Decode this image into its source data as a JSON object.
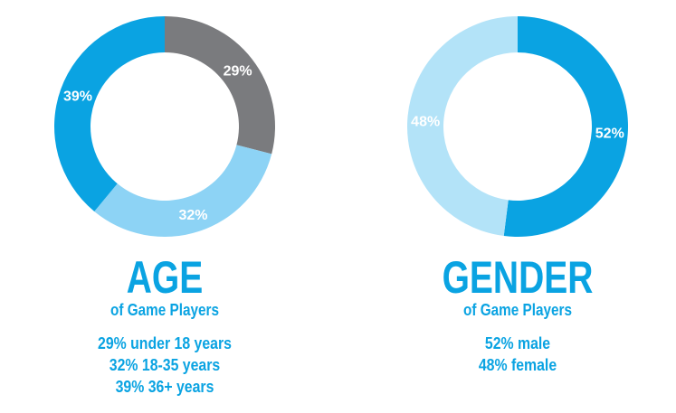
{
  "chart_data": [
    {
      "type": "pie",
      "variant": "donut",
      "title": "AGE",
      "subtitle": "of Game Players",
      "categories": [
        "under 18 years",
        "18-35 years",
        "36+ years"
      ],
      "values": [
        29,
        32,
        39
      ],
      "slice_labels": [
        "29%",
        "32%",
        "39%"
      ],
      "colors": [
        "#7a7b7e",
        "#8dd3f5",
        "#0aa3e2"
      ],
      "stats": [
        "29% under 18 years",
        "32% 18-35 years",
        "39% 36+ years"
      ]
    },
    {
      "type": "pie",
      "variant": "donut",
      "title": "GENDER",
      "subtitle": "of Game Players",
      "categories": [
        "male",
        "female"
      ],
      "values": [
        52,
        48
      ],
      "slice_labels": [
        "52%",
        "48%"
      ],
      "colors": [
        "#0aa3e2",
        "#b3e3f8"
      ],
      "stats": [
        "52% male",
        "48% female"
      ]
    }
  ],
  "text_color": "#0aa3e2",
  "label_color": "#ffffff"
}
